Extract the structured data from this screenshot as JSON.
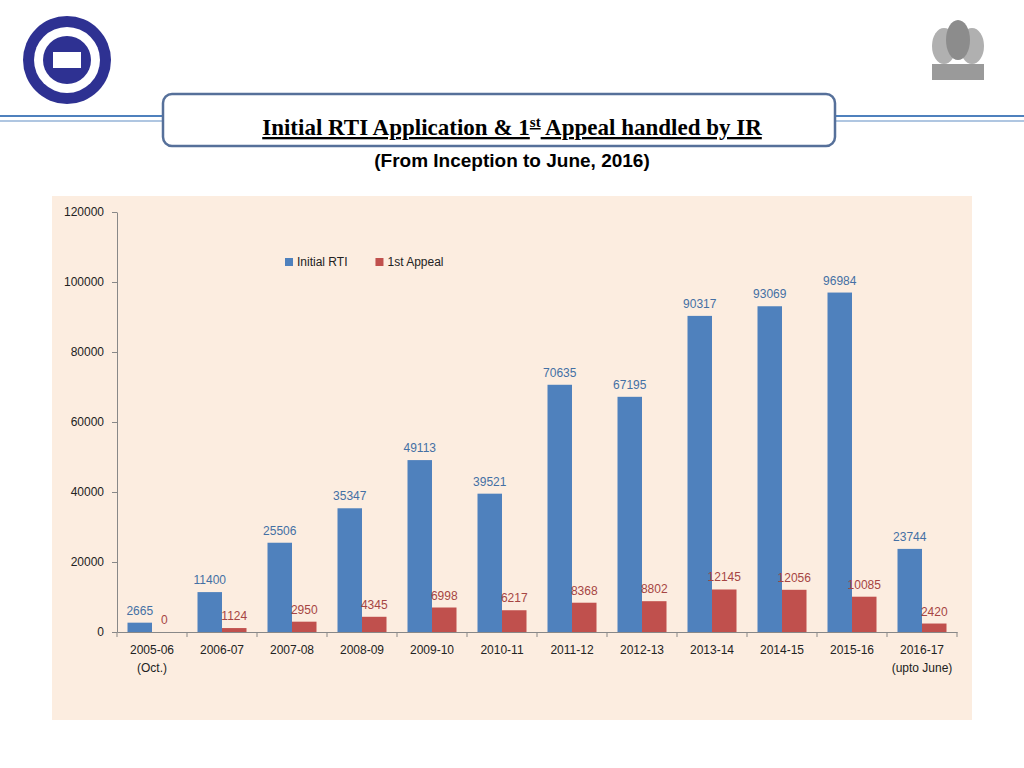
{
  "chart_data": {
    "type": "bar",
    "title": "Initial RTI Application & 1st Appeal handled by IR",
    "subtitle": "(From Inception to June, 2016)",
    "categories": [
      "2005-06\n(Oct.)",
      "2006-07",
      "2007-08",
      "2008-09",
      "2009-10",
      "2010-11",
      "2011-12",
      "2012-13",
      "2013-14",
      "2014-15",
      "2015-16",
      "2016-17\n(upto June)"
    ],
    "series": [
      {
        "name": "Initial RTI",
        "color": "#4f81bd",
        "values": [
          2665,
          11400,
          25506,
          35347,
          49113,
          39521,
          70635,
          67195,
          90317,
          93069,
          96984,
          23744
        ]
      },
      {
        "name": "1st Appeal",
        "color": "#c0504d",
        "values": [
          0,
          1124,
          2950,
          4345,
          6998,
          6217,
          8368,
          8802,
          12145,
          12056,
          10085,
          2420
        ]
      }
    ],
    "ylim": [
      0,
      120000
    ],
    "yticks": [
      0,
      20000,
      40000,
      60000,
      80000,
      100000,
      120000
    ],
    "grid": false,
    "legend": "top",
    "data_labels": true
  }
}
